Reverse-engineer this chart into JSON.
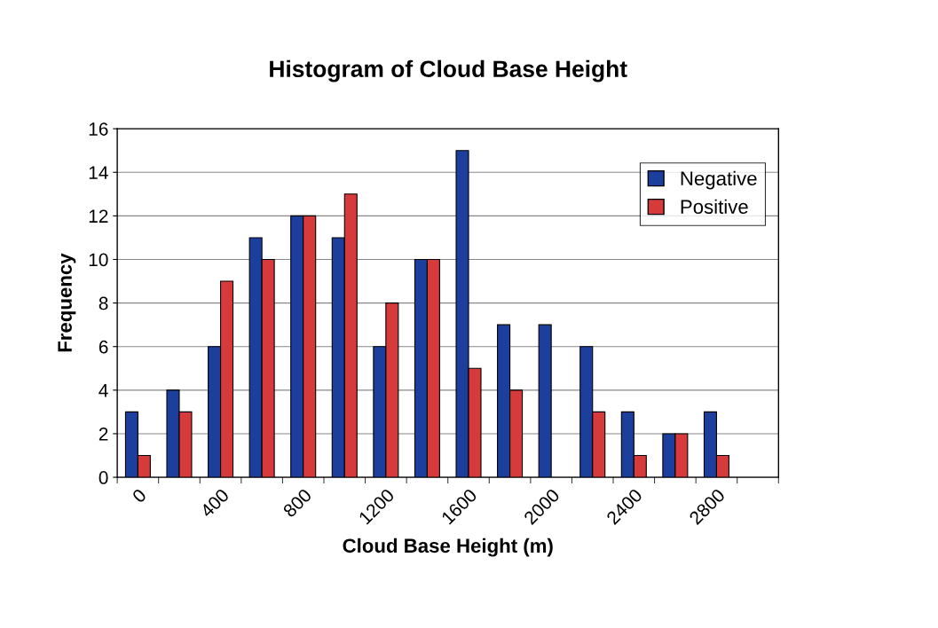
{
  "chart_data": {
    "type": "bar",
    "title": "Histogram of Cloud Base Height",
    "xlabel": "Cloud Base Height (m)",
    "ylabel": "Frequency",
    "categories": [
      "0",
      null,
      "400",
      null,
      "800",
      null,
      "1200",
      null,
      "1600",
      null,
      "2000",
      null,
      "2400",
      null,
      "2800",
      null
    ],
    "series": [
      {
        "name": "Negative",
        "color": "#1c3f9e",
        "values": [
          3,
          4,
          6,
          11,
          12,
          11,
          6,
          10,
          15,
          7,
          7,
          6,
          3,
          2,
          3,
          0
        ]
      },
      {
        "name": "Positive",
        "color": "#d63a3a",
        "values": [
          1,
          3,
          9,
          10,
          12,
          13,
          8,
          10,
          5,
          4,
          0,
          3,
          1,
          2,
          1,
          0
        ]
      }
    ],
    "ylim": [
      0,
      16
    ],
    "yticks": [
      0,
      2,
      4,
      6,
      8,
      10,
      12,
      14,
      16
    ],
    "grid": "y",
    "legend": "top right"
  }
}
